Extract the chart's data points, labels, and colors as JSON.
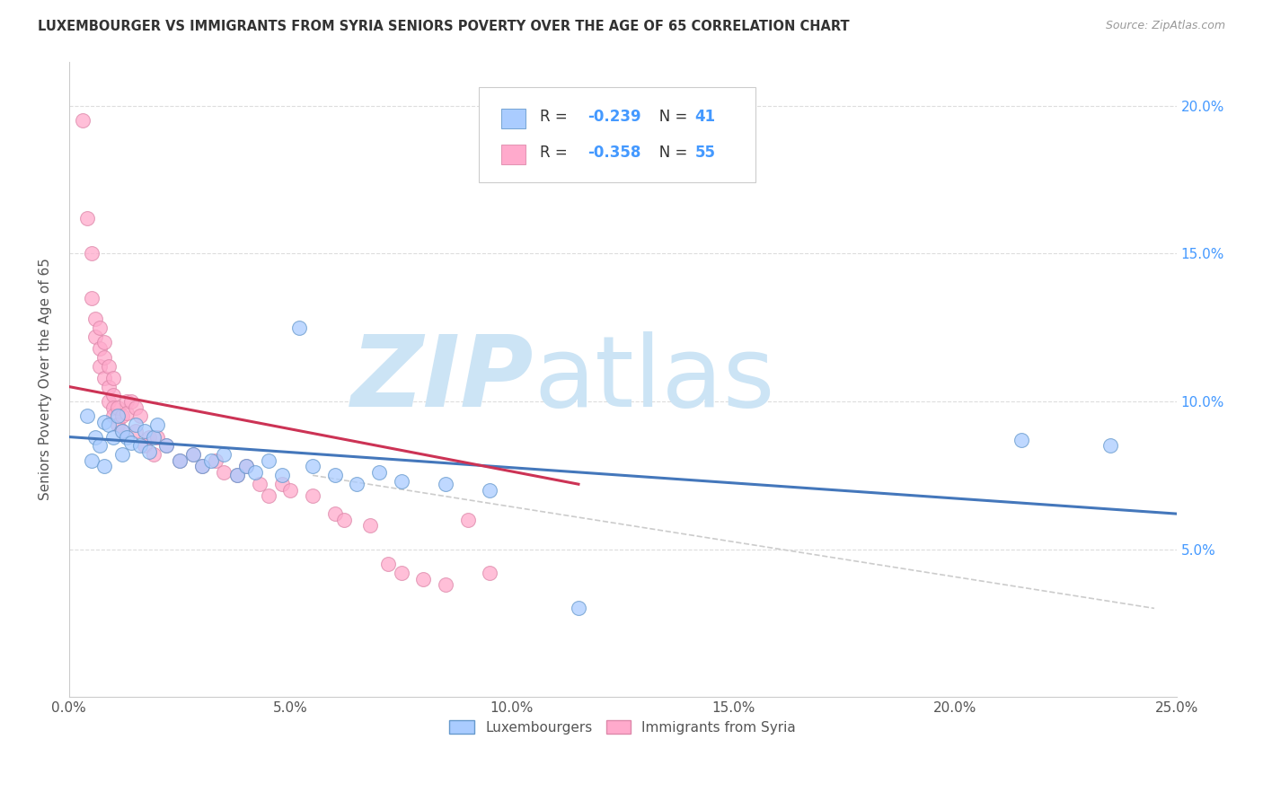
{
  "title": "LUXEMBOURGER VS IMMIGRANTS FROM SYRIA SENIORS POVERTY OVER THE AGE OF 65 CORRELATION CHART",
  "source": "Source: ZipAtlas.com",
  "ylabel": "Seniors Poverty Over the Age of 65",
  "x_min": 0.0,
  "x_max": 0.25,
  "y_min": 0.0,
  "y_max": 0.215,
  "x_ticks": [
    0.0,
    0.05,
    0.1,
    0.15,
    0.2,
    0.25
  ],
  "x_tick_labels": [
    "0.0%",
    "5.0%",
    "10.0%",
    "15.0%",
    "20.0%",
    "25.0%"
  ],
  "y_ticks_right": [
    0.05,
    0.1,
    0.15,
    0.2
  ],
  "y_tick_labels_right": [
    "5.0%",
    "10.0%",
    "15.0%",
    "20.0%"
  ],
  "legend_r1": "-0.239",
  "legend_n1": "41",
  "legend_r2": "-0.358",
  "legend_n2": "55",
  "blue_color": "#aaccff",
  "blue_edge": "#6699cc",
  "pink_color": "#ffaacc",
  "pink_edge": "#dd88aa",
  "trend_blue": "#4477bb",
  "trend_pink": "#cc3355",
  "trend_dashed_color": "#cccccc",
  "watermark_zip": "ZIP",
  "watermark_atlas": "atlas",
  "watermark_color": "#cce4f5",
  "scatter_blue": [
    [
      0.004,
      0.095
    ],
    [
      0.005,
      0.08
    ],
    [
      0.006,
      0.088
    ],
    [
      0.007,
      0.085
    ],
    [
      0.008,
      0.093
    ],
    [
      0.008,
      0.078
    ],
    [
      0.009,
      0.092
    ],
    [
      0.01,
      0.088
    ],
    [
      0.011,
      0.095
    ],
    [
      0.012,
      0.09
    ],
    [
      0.012,
      0.082
    ],
    [
      0.013,
      0.088
    ],
    [
      0.014,
      0.086
    ],
    [
      0.015,
      0.092
    ],
    [
      0.016,
      0.085
    ],
    [
      0.017,
      0.09
    ],
    [
      0.018,
      0.083
    ],
    [
      0.019,
      0.088
    ],
    [
      0.02,
      0.092
    ],
    [
      0.022,
      0.085
    ],
    [
      0.025,
      0.08
    ],
    [
      0.028,
      0.082
    ],
    [
      0.03,
      0.078
    ],
    [
      0.032,
      0.08
    ],
    [
      0.035,
      0.082
    ],
    [
      0.038,
      0.075
    ],
    [
      0.04,
      0.078
    ],
    [
      0.042,
      0.076
    ],
    [
      0.045,
      0.08
    ],
    [
      0.048,
      0.075
    ],
    [
      0.052,
      0.125
    ],
    [
      0.055,
      0.078
    ],
    [
      0.06,
      0.075
    ],
    [
      0.065,
      0.072
    ],
    [
      0.07,
      0.076
    ],
    [
      0.075,
      0.073
    ],
    [
      0.085,
      0.072
    ],
    [
      0.095,
      0.07
    ],
    [
      0.115,
      0.03
    ],
    [
      0.215,
      0.087
    ],
    [
      0.235,
      0.085
    ]
  ],
  "scatter_pink": [
    [
      0.003,
      0.195
    ],
    [
      0.004,
      0.162
    ],
    [
      0.005,
      0.15
    ],
    [
      0.005,
      0.135
    ],
    [
      0.006,
      0.128
    ],
    [
      0.006,
      0.122
    ],
    [
      0.007,
      0.125
    ],
    [
      0.007,
      0.118
    ],
    [
      0.007,
      0.112
    ],
    [
      0.008,
      0.12
    ],
    [
      0.008,
      0.115
    ],
    [
      0.008,
      0.108
    ],
    [
      0.009,
      0.112
    ],
    [
      0.009,
      0.105
    ],
    [
      0.009,
      0.1
    ],
    [
      0.01,
      0.108
    ],
    [
      0.01,
      0.102
    ],
    [
      0.01,
      0.098
    ],
    [
      0.01,
      0.095
    ],
    [
      0.011,
      0.098
    ],
    [
      0.011,
      0.092
    ],
    [
      0.012,
      0.095
    ],
    [
      0.012,
      0.09
    ],
    [
      0.013,
      0.1
    ],
    [
      0.013,
      0.096
    ],
    [
      0.014,
      0.1
    ],
    [
      0.015,
      0.098
    ],
    [
      0.015,
      0.09
    ],
    [
      0.016,
      0.095
    ],
    [
      0.017,
      0.085
    ],
    [
      0.018,
      0.088
    ],
    [
      0.019,
      0.082
    ],
    [
      0.02,
      0.088
    ],
    [
      0.022,
      0.085
    ],
    [
      0.025,
      0.08
    ],
    [
      0.028,
      0.082
    ],
    [
      0.03,
      0.078
    ],
    [
      0.033,
      0.08
    ],
    [
      0.035,
      0.076
    ],
    [
      0.038,
      0.075
    ],
    [
      0.04,
      0.078
    ],
    [
      0.043,
      0.072
    ],
    [
      0.045,
      0.068
    ],
    [
      0.048,
      0.072
    ],
    [
      0.05,
      0.07
    ],
    [
      0.055,
      0.068
    ],
    [
      0.06,
      0.062
    ],
    [
      0.062,
      0.06
    ],
    [
      0.068,
      0.058
    ],
    [
      0.072,
      0.045
    ],
    [
      0.075,
      0.042
    ],
    [
      0.08,
      0.04
    ],
    [
      0.085,
      0.038
    ],
    [
      0.09,
      0.06
    ],
    [
      0.095,
      0.042
    ]
  ],
  "blue_trend_x": [
    0.0,
    0.25
  ],
  "blue_trend_y": [
    0.088,
    0.062
  ],
  "pink_trend_x": [
    0.0,
    0.115
  ],
  "pink_trend_y": [
    0.105,
    0.072
  ],
  "dashed_trend_x": [
    0.055,
    0.245
  ],
  "dashed_trend_y": [
    0.075,
    0.03
  ]
}
